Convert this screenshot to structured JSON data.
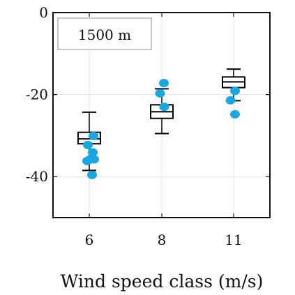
{
  "chart_data": {
    "type": "box",
    "title": "",
    "xlabel": "Wind speed class (m/s)",
    "ylabel": "",
    "categories": [
      "6",
      "8",
      "11"
    ],
    "ylim": [
      -50,
      0
    ],
    "y_ticks": [
      0,
      -20,
      -40
    ],
    "x_tick_labels": [
      "6",
      "8",
      "11"
    ],
    "y_tick_labels": [
      "0",
      "-20",
      "-40"
    ],
    "grid": true,
    "legend_text": "1500 m",
    "legend_position": "top-left",
    "box_color": "#000000",
    "point_color": "#1aa7e1",
    "boxes": [
      {
        "category": "6",
        "whisker_low": -38.5,
        "q1": -32.0,
        "median": -30.8,
        "q3": -29.2,
        "whisker_high": -24.3
      },
      {
        "category": "8",
        "whisker_low": -29.5,
        "q1": -25.8,
        "median": -24.2,
        "q3": -22.5,
        "whisker_high": -18.6
      },
      {
        "category": "11",
        "whisker_low": -21.5,
        "q1": -18.3,
        "median": -16.9,
        "q3": -15.7,
        "whisker_high": -13.8
      }
    ],
    "points": [
      {
        "category": "6",
        "x_offset": 0.12,
        "y": -30.1
      },
      {
        "category": "6",
        "x_offset": -0.04,
        "y": -32.3
      },
      {
        "category": "6",
        "x_offset": 0.1,
        "y": -34.1
      },
      {
        "category": "6",
        "x_offset": 0.02,
        "y": -35.8
      },
      {
        "category": "6",
        "x_offset": 0.14,
        "y": -35.8
      },
      {
        "category": "6",
        "x_offset": -0.06,
        "y": -36.2
      },
      {
        "category": "6",
        "x_offset": 0.08,
        "y": -39.6
      },
      {
        "category": "8",
        "x_offset": 0.06,
        "y": -17.2
      },
      {
        "category": "8",
        "x_offset": -0.05,
        "y": -19.7
      },
      {
        "category": "8",
        "x_offset": 0.07,
        "y": -23.0
      },
      {
        "category": "11",
        "x_offset": 0.04,
        "y": -19.1
      },
      {
        "category": "11",
        "x_offset": -0.09,
        "y": -21.4
      },
      {
        "category": "11",
        "x_offset": 0.04,
        "y": -24.8
      }
    ]
  }
}
